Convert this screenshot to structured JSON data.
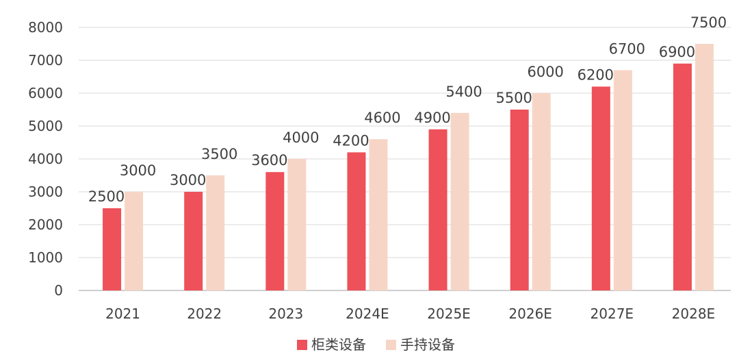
{
  "chart_data": {
    "type": "bar",
    "categories": [
      "2021",
      "2022",
      "2023",
      "2024E",
      "2025E",
      "2026E",
      "2027E",
      "2028E"
    ],
    "series": [
      {
        "name": "柜类设备",
        "color": "#ee5159",
        "values": [
          2500,
          3000,
          3600,
          4200,
          4900,
          5500,
          6200,
          6900
        ]
      },
      {
        "name": "手持设备",
        "color": "#f7d5c6",
        "values": [
          3000,
          3500,
          4000,
          4600,
          5400,
          6000,
          6700,
          7500
        ]
      }
    ],
    "ylim": [
      0,
      8000
    ],
    "yticks": [
      0,
      1000,
      2000,
      3000,
      4000,
      5000,
      6000,
      7000,
      8000
    ],
    "grid": true,
    "legend_position": "bottom-center",
    "title": "",
    "xlabel": "",
    "ylabel": ""
  }
}
